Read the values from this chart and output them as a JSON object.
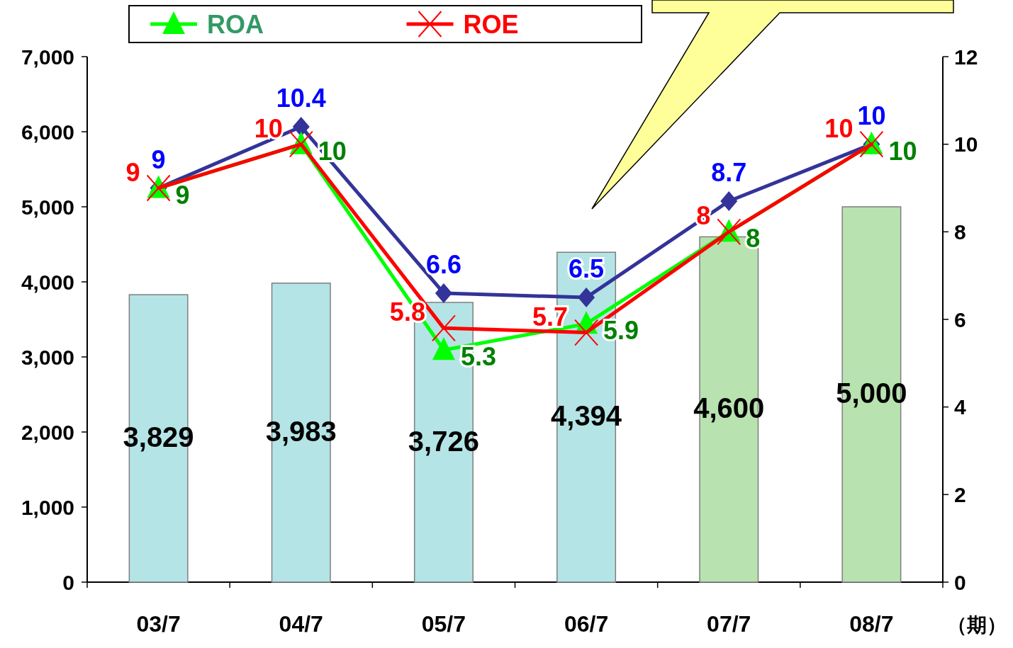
{
  "chart_data": {
    "type": "bar",
    "xlabel": "（期）",
    "categories": [
      "03/7",
      "04/7",
      "05/7",
      "06/7",
      "07/7",
      "08/7"
    ],
    "series": [
      {
        "value_labels": [
          "3,829",
          "3,983",
          "3,726",
          "4,394",
          "4,600",
          "5,000"
        ],
        "colors": [
          "#b4e4e6",
          "#b4e4e6",
          "#b4e4e6",
          "#b4e4e6",
          "#b8e2b0",
          "#b8e2b0"
        ],
        "values": [
          3829,
          3983,
          3726,
          4394,
          4600,
          5000
        ]
      },
      {
        "type": "line",
        "axis": "y2",
        "color": "#333399",
        "marker": "diamond",
        "values": [
          9,
          10.4,
          6.6,
          6.5,
          8.7,
          10
        ]
      },
      {
        "type": "line",
        "axis": "y2",
        "name": "ROA",
        "color": "#00ff00",
        "marker": "triangle",
        "values": [
          9,
          10,
          5.3,
          5.9,
          8,
          10
        ]
      },
      {
        "type": "line",
        "axis": "y2",
        "name": "ROE",
        "color": "#ff0000",
        "marker": "cross",
        "values": [
          9,
          10,
          5.8,
          5.7,
          8,
          10
        ]
      }
    ],
    "ylim": [
      0,
      7000
    ],
    "yticks": [
      0,
      {
        "value": 1000,
        "label": "1,000"
      },
      {
        "value": 2000,
        "label": "2,000"
      },
      {
        "value": 3000,
        "label": "3,000"
      },
      {
        "value": 4000,
        "label": "4,000"
      },
      {
        "value": 5000,
        "label": "5,000"
      },
      {
        "value": 6000,
        "label": "6,000"
      },
      {
        "value": 7000,
        "label": "7,000"
      }
    ],
    "y2lim": [
      0,
      12
    ],
    "y2ticks": [
      0,
      2,
      4,
      6,
      8,
      10,
      12
    ],
    "data_labels": true,
    "legend": "top",
    "grid": false,
    "line_style": "solid"
  }
}
